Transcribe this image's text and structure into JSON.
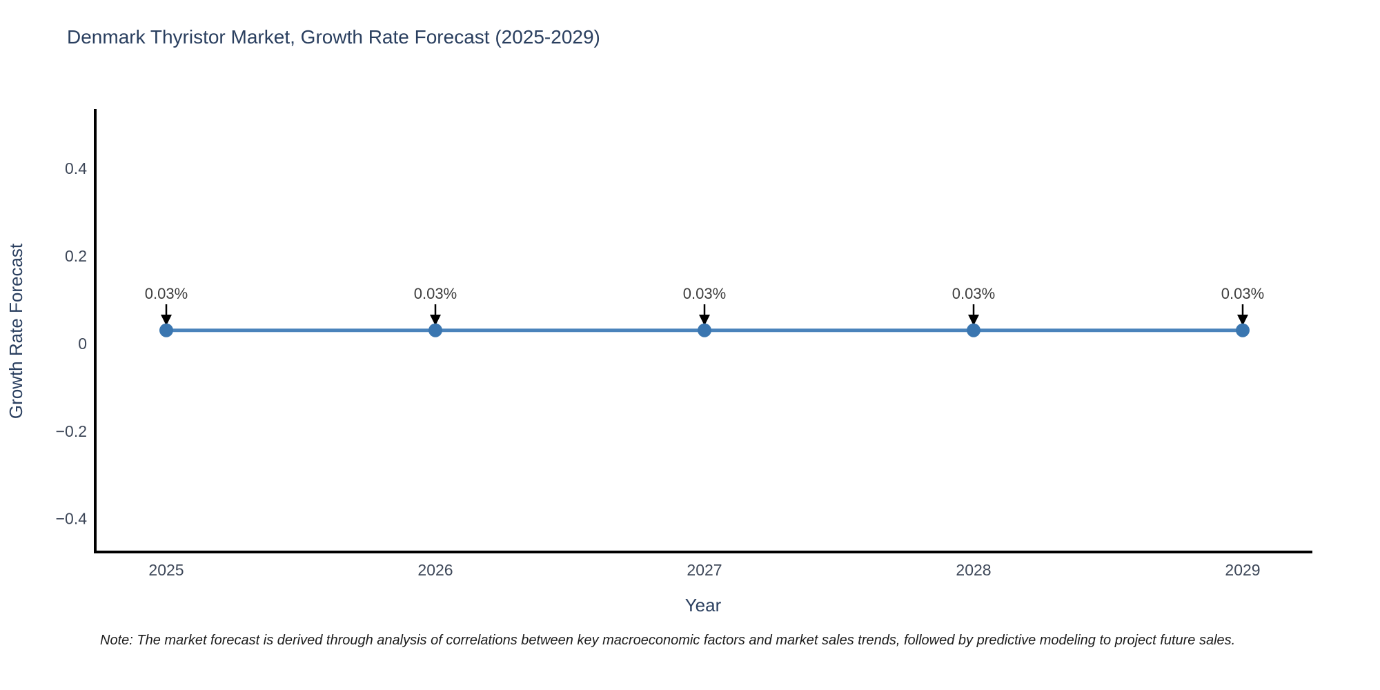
{
  "header": {
    "title": "Denmark Thyristor Market, Growth Rate Forecast (2025-2029)"
  },
  "footnote": {
    "text": "Note: The market forecast is derived through analysis of correlations between key macroeconomic factors and market sales trends, followed by predictive modeling to project future sales."
  },
  "chart_data": {
    "type": "line",
    "title": "Denmark Thyristor Market, Growth Rate Forecast (2025-2029)",
    "xlabel": "Year",
    "ylabel": "Growth Rate Forecast",
    "x": [
      2025,
      2026,
      2027,
      2028,
      2029
    ],
    "series": [
      {
        "name": "Growth Rate Forecast",
        "values": [
          0.03,
          0.03,
          0.03,
          0.03,
          0.03
        ]
      }
    ],
    "point_labels": [
      "0.03%",
      "0.03%",
      "0.03%",
      "0.03%",
      "0.03%"
    ],
    "yticks": [
      0.4,
      0.2,
      0,
      -0.2,
      -0.4
    ],
    "ylim": [
      -0.476,
      0.532
    ],
    "grid": false,
    "legend_position": "none",
    "annotations_have_arrows": true,
    "colors": {
      "line": "#4a83bb",
      "marker": "#3a76b0",
      "axis": "#000000",
      "tick_label": "#3d4758",
      "axis_title": "#2a3f5f",
      "annotation_text": "#3d3d3d",
      "annotation_arrow": "#000000"
    }
  }
}
